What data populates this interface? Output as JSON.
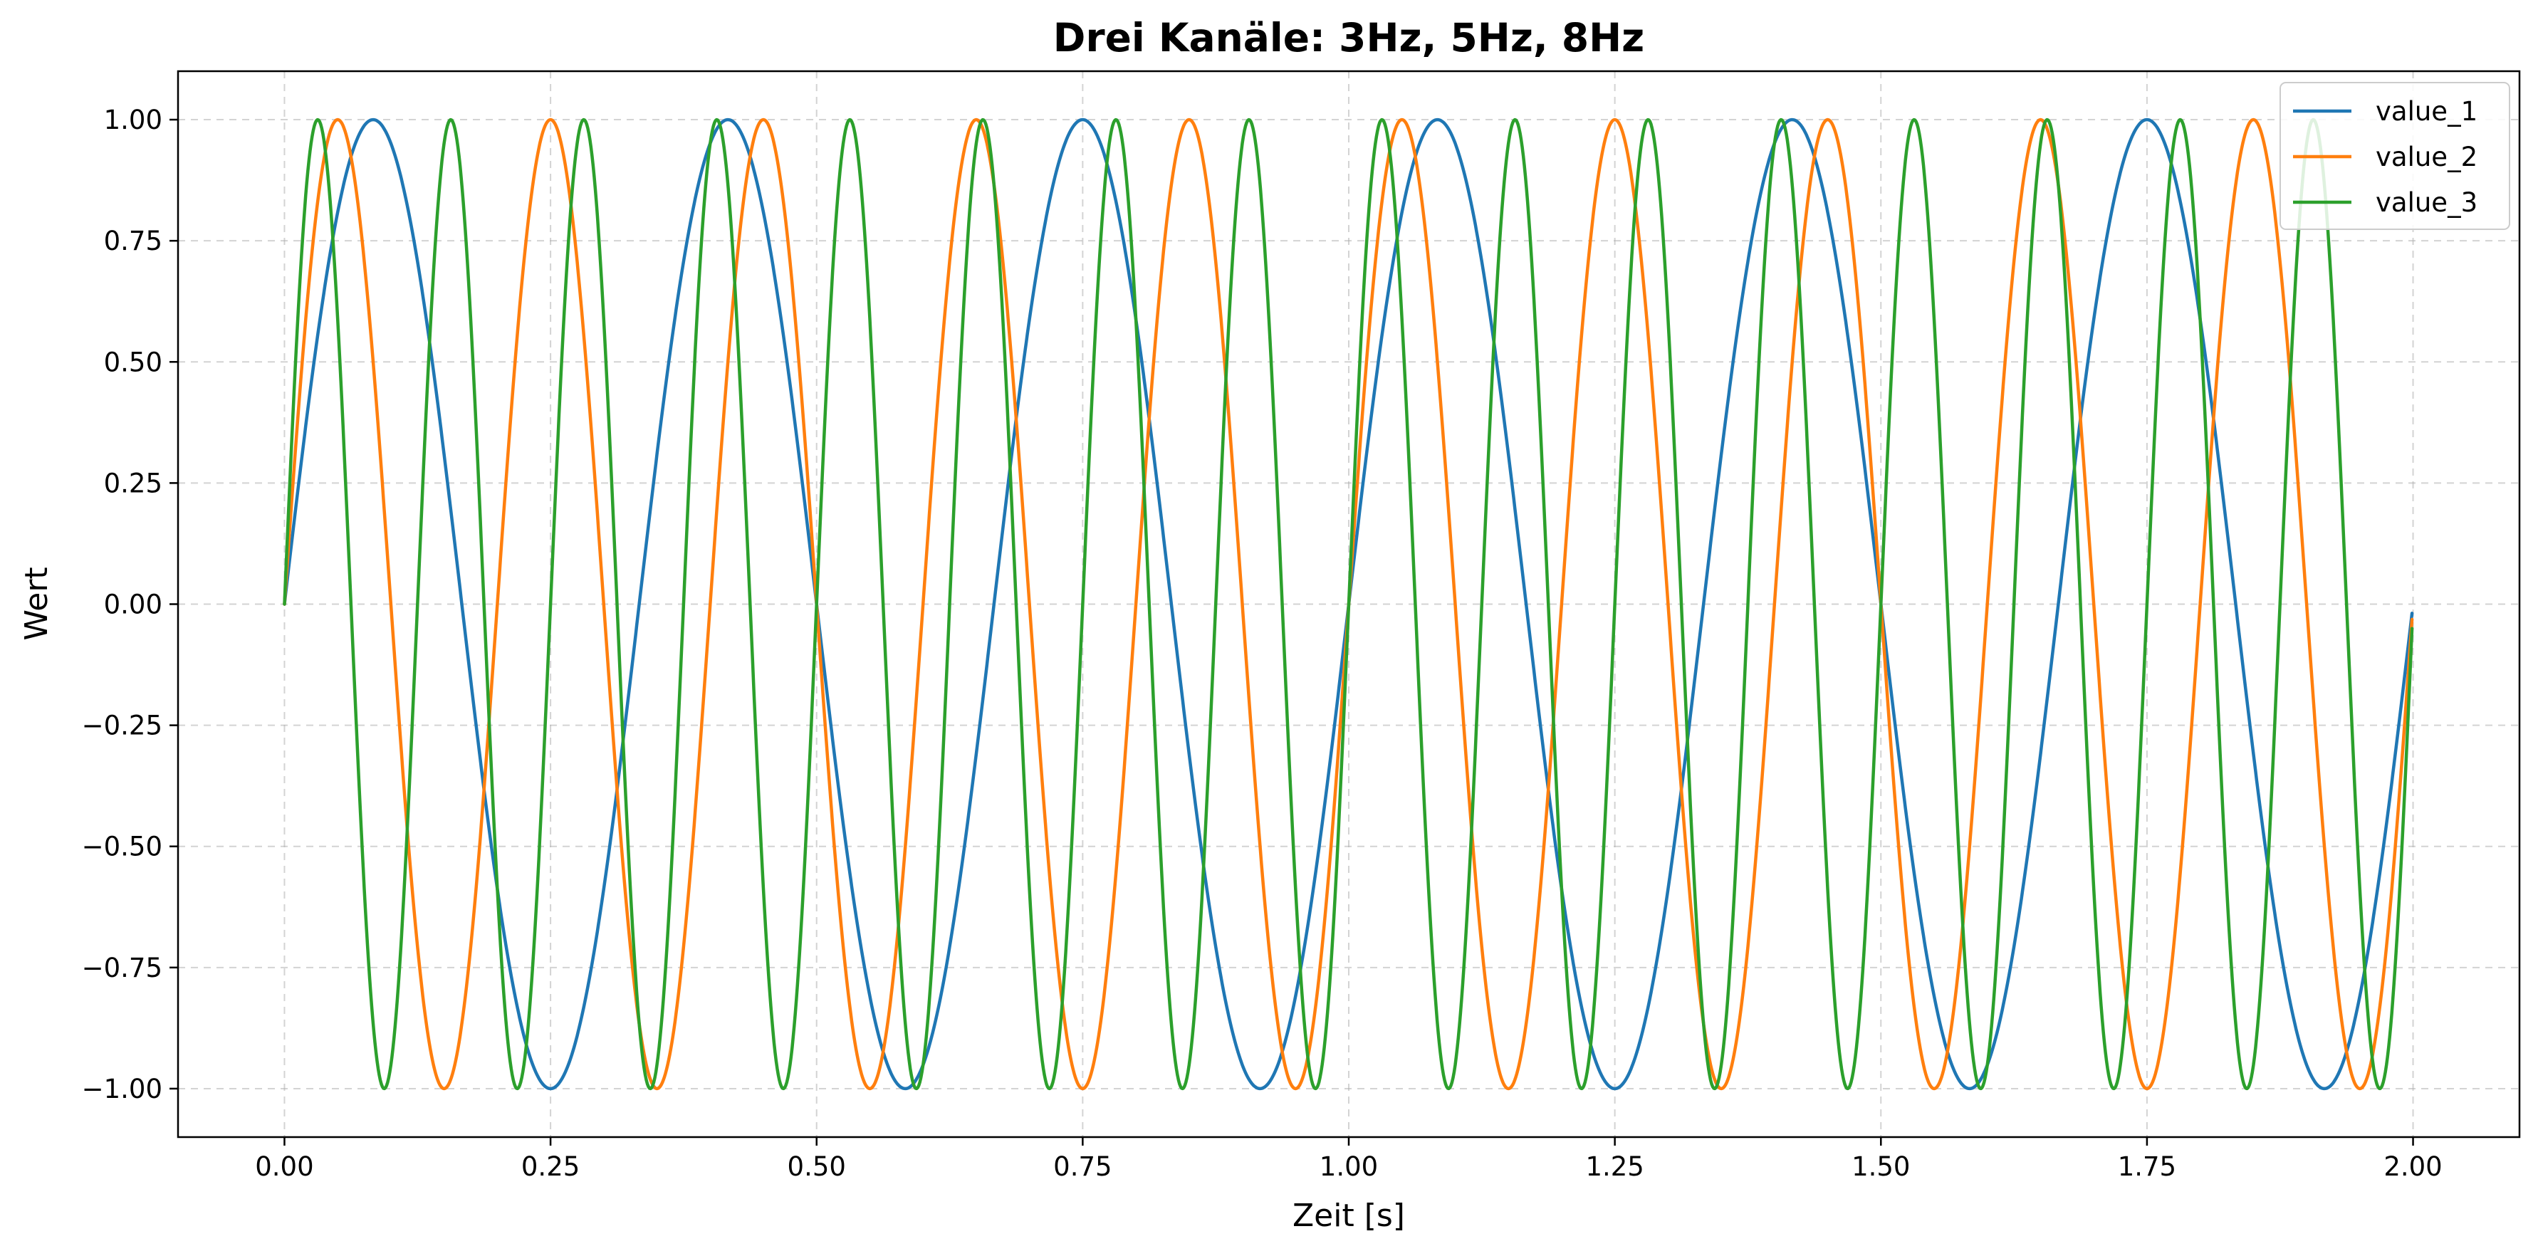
{
  "chart_data": {
    "type": "line",
    "title": "Drei Kanäle: 3Hz, 5Hz, 8Hz",
    "xlabel": "Zeit [s]",
    "ylabel": "Wert",
    "xlim": [
      -0.1,
      2.1
    ],
    "ylim": [
      -1.1,
      1.1
    ],
    "x_ticks": [
      0.0,
      0.25,
      0.5,
      0.75,
      1.0,
      1.25,
      1.5,
      1.75,
      2.0
    ],
    "x_tick_labels": [
      "0.00",
      "0.25",
      "0.50",
      "0.75",
      "1.00",
      "1.25",
      "1.50",
      "1.75",
      "2.00"
    ],
    "y_ticks": [
      -1.0,
      -0.75,
      -0.5,
      -0.25,
      0.0,
      0.25,
      0.5,
      0.75,
      1.0
    ],
    "y_tick_labels": [
      "−1.00",
      "−0.75",
      "−0.50",
      "−0.25",
      "0.00",
      "0.25",
      "0.50",
      "0.75",
      "1.00"
    ],
    "grid": true,
    "legend_position": "top-right",
    "x_range": [
      0.0,
      2.0
    ],
    "series": [
      {
        "name": "value_1",
        "color": "#1f77b4",
        "frequency_hz": 3
      },
      {
        "name": "value_2",
        "color": "#ff7f0e",
        "frequency_hz": 5
      },
      {
        "name": "value_3",
        "color": "#2ca02c",
        "frequency_hz": 8
      }
    ]
  }
}
